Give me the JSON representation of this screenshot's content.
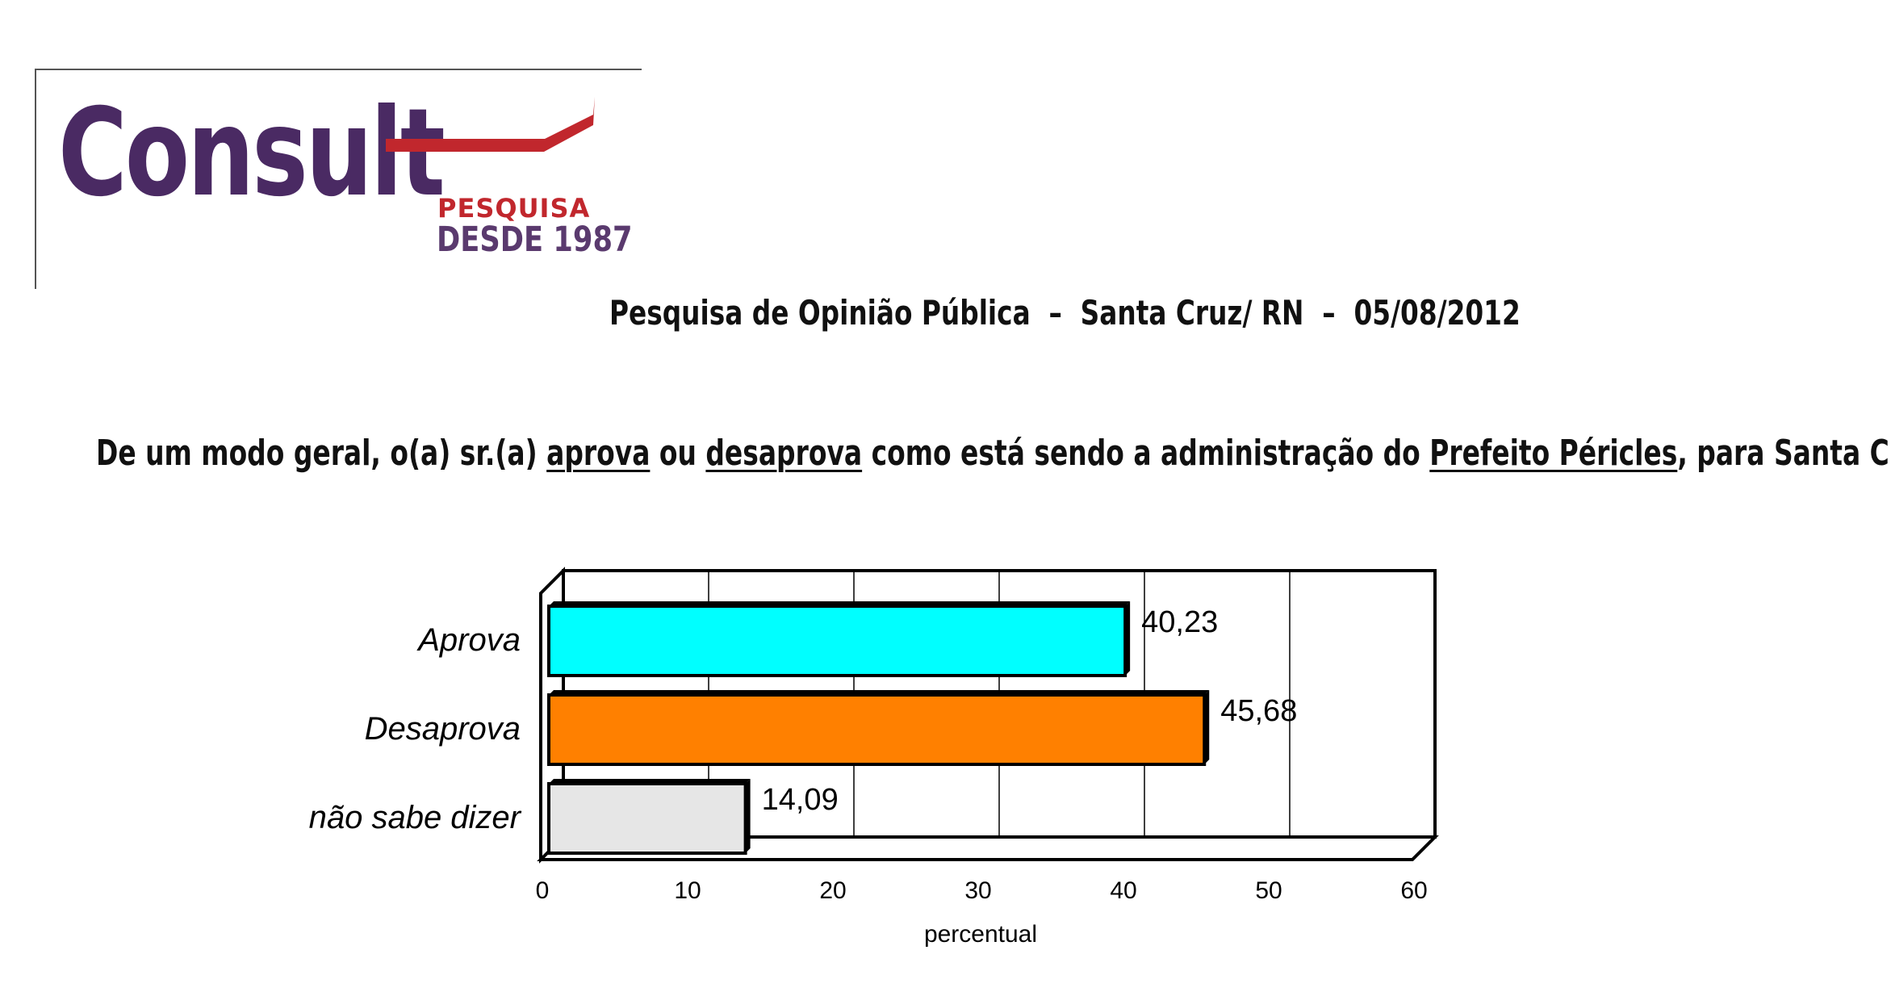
{
  "logo": {
    "brand": "Consult",
    "tagline_1": "PESQUISA",
    "tagline_2": "DESDE 1987",
    "colors": {
      "brand_purple": "#4a2a63",
      "accent_red": "#c1272d"
    }
  },
  "header": {
    "text": "Pesquisa de Opinião Pública  –  Santa Cruz/ RN  –  05/08/2012"
  },
  "question": {
    "part_1": "De um modo geral, o(a) sr.(a) ",
    "aprova": "aprova",
    "part_2": " ou ",
    "desaprova": "desaprova",
    "part_3": " como está sendo a administração do ",
    "prefeito": "Prefeito Péricles",
    "part_4": ", para Santa Cruz?"
  },
  "chart_data": {
    "type": "bar",
    "orientation": "horizontal",
    "categories": [
      "Aprova",
      "Desaprova",
      "não sabe dizer"
    ],
    "values": [
      40.23,
      45.68,
      14.09
    ],
    "value_labels": [
      "40,23",
      "45,68",
      "14,09"
    ],
    "colors": [
      "#00ffff",
      "#ff8000",
      "#e6e6e6"
    ],
    "xlabel": "percentual",
    "xlim": [
      0,
      60
    ],
    "xticks": [
      0,
      10,
      20,
      30,
      40,
      50,
      60
    ],
    "grid": true,
    "legend": "none"
  }
}
